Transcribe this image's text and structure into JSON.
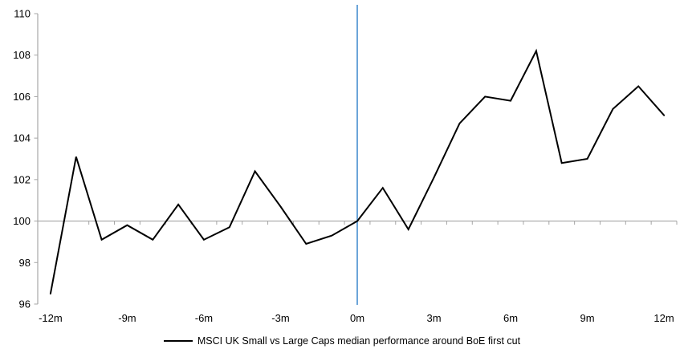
{
  "chart_data": {
    "type": "line",
    "title": "",
    "xlabel": "",
    "ylabel": "",
    "categories": [
      -12,
      -11,
      -10,
      -9,
      -8,
      -7,
      -6,
      -5,
      -4,
      -3,
      -2,
      -1,
      0,
      1,
      2,
      3,
      4,
      5,
      6,
      7,
      8,
      9,
      10,
      11,
      12
    ],
    "series": [
      {
        "name": "MSCI UK Small vs Large Caps median performance around BoE first cut",
        "color": "#000000",
        "values": [
          96.5,
          103.1,
          99.1,
          99.8,
          99.1,
          100.8,
          99.1,
          99.7,
          102.4,
          100.7,
          98.9,
          99.3,
          100.0,
          101.6,
          99.6,
          102.1,
          104.7,
          106.0,
          105.8,
          108.2,
          102.8,
          103.0,
          105.4,
          106.5,
          105.1
        ]
      }
    ],
    "ylim": [
      96,
      110
    ],
    "y_ticks": [
      96,
      98,
      100,
      102,
      104,
      106,
      108,
      110
    ],
    "y_tick_labels": [
      "96",
      "98",
      "100",
      "102",
      "104",
      "106",
      "108",
      "110"
    ],
    "x_tick_months": [
      -12,
      -9,
      -6,
      -3,
      0,
      3,
      6,
      9,
      12
    ],
    "x_tick_labels": [
      "-12m",
      "-9m",
      "-6m",
      "-3m",
      "0m",
      "3m",
      "6m",
      "9m",
      "12m"
    ],
    "baseline_value": 100,
    "event_line_x": 0,
    "grid": "off",
    "legend_position": "bottom",
    "colors": {
      "series_line": "#000000",
      "event_line": "#5B9BD5",
      "axis": "#A6A6A6",
      "label_text": "#000000",
      "background": "#FFFFFF"
    }
  },
  "legend": {
    "label": "MSCI UK Small vs Large Caps median performance around BoE first cut"
  }
}
